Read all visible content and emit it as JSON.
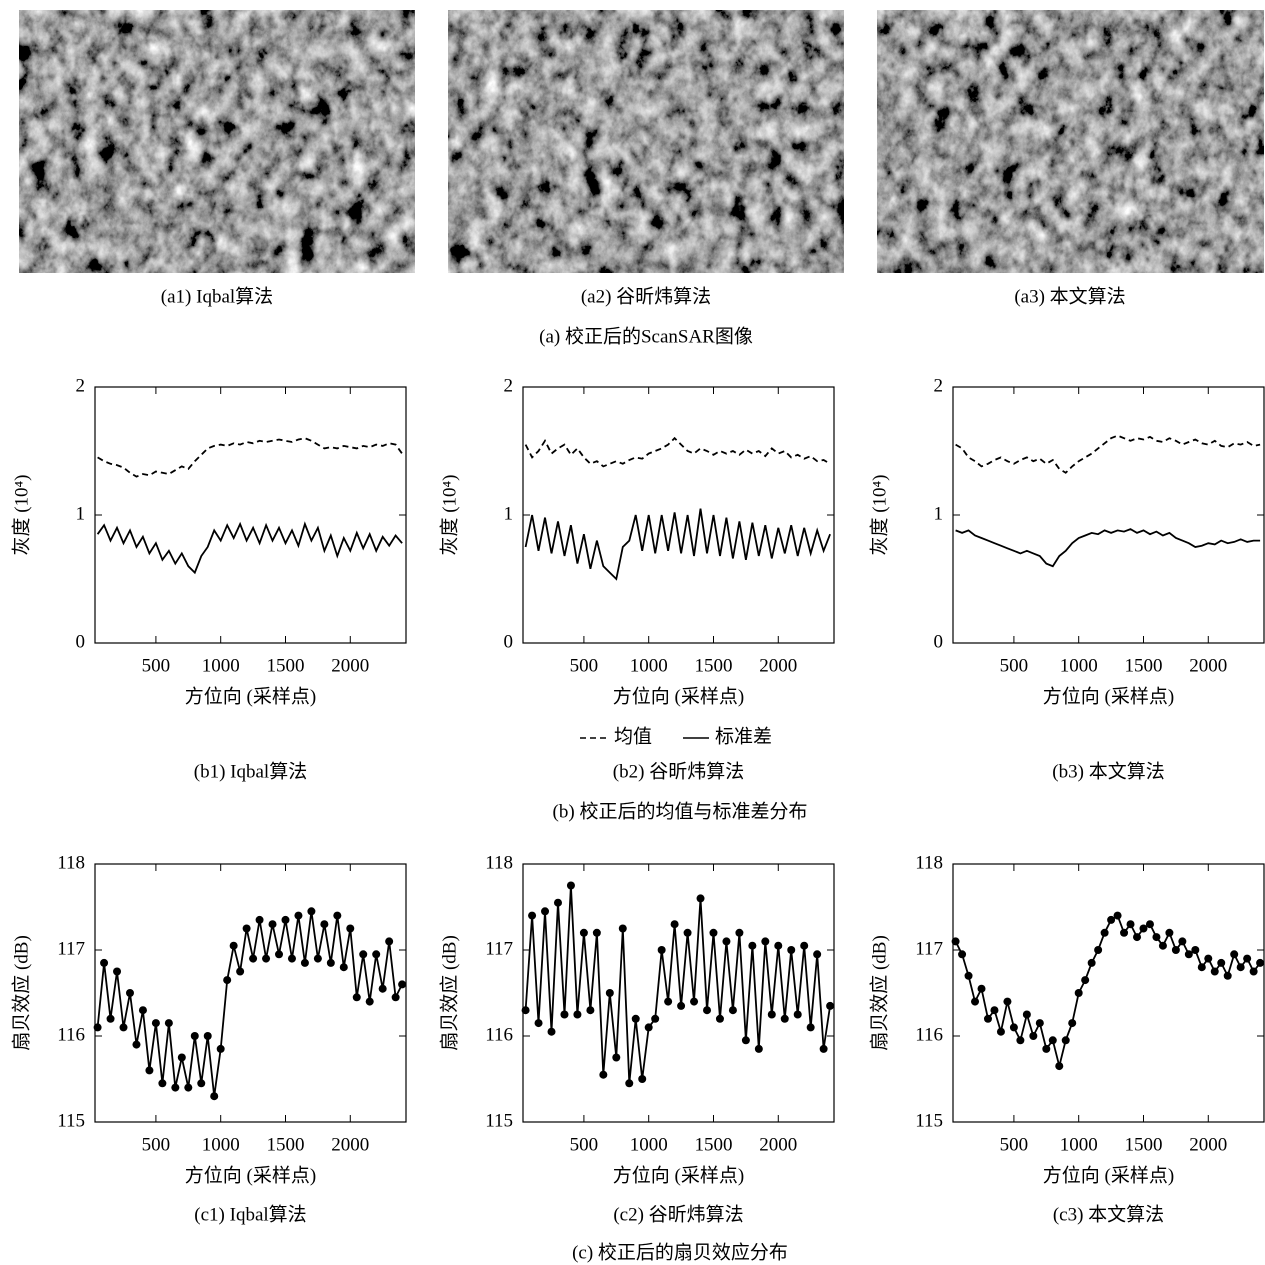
{
  "images": [
    {
      "caption": "(a1) Iqbal算法"
    },
    {
      "caption": "(a2) 谷昕炜算法"
    },
    {
      "caption": "(a3) 本文算法"
    }
  ],
  "group_captions": [
    "(a) 校正后的ScanSAR图像",
    "(b) 校正后的均值与标准差分布",
    "(c) 校正后的扇贝效应分布"
  ],
  "chart_data": [
    {
      "type": "line",
      "caption": "(b1) Iqbal算法",
      "xlabel": "方位向 (采样点)",
      "ylabel": "灰度 (10⁴)",
      "xlim": [
        30,
        2430
      ],
      "ylim": [
        0,
        2
      ],
      "xticks": [
        500,
        1000,
        1500,
        2000
      ],
      "yticks": [
        0,
        1,
        2
      ],
      "x": [
        50,
        100,
        150,
        200,
        250,
        300,
        350,
        400,
        450,
        500,
        550,
        600,
        650,
        700,
        750,
        800,
        850,
        900,
        950,
        1000,
        1050,
        1100,
        1150,
        1200,
        1250,
        1300,
        1350,
        1400,
        1450,
        1500,
        1550,
        1600,
        1650,
        1700,
        1750,
        1800,
        1850,
        1900,
        1950,
        2000,
        2050,
        2100,
        2150,
        2200,
        2250,
        2300,
        2350,
        2400
      ],
      "series": [
        {
          "name": "均值",
          "color": "#000000",
          "linestyle": "dashed",
          "values": [
            1.45,
            1.42,
            1.4,
            1.39,
            1.37,
            1.33,
            1.3,
            1.32,
            1.31,
            1.34,
            1.33,
            1.32,
            1.35,
            1.38,
            1.36,
            1.42,
            1.47,
            1.52,
            1.54,
            1.55,
            1.54,
            1.56,
            1.55,
            1.57,
            1.56,
            1.58,
            1.57,
            1.58,
            1.59,
            1.58,
            1.57,
            1.59,
            1.6,
            1.58,
            1.55,
            1.52,
            1.53,
            1.52,
            1.54,
            1.53,
            1.52,
            1.54,
            1.53,
            1.55,
            1.54,
            1.56,
            1.55,
            1.48
          ]
        },
        {
          "name": "标准差",
          "color": "#000000",
          "linestyle": "solid",
          "values": [
            0.85,
            0.92,
            0.8,
            0.9,
            0.78,
            0.88,
            0.75,
            0.83,
            0.7,
            0.78,
            0.65,
            0.72,
            0.62,
            0.7,
            0.6,
            0.55,
            0.68,
            0.75,
            0.88,
            0.8,
            0.92,
            0.82,
            0.93,
            0.8,
            0.9,
            0.78,
            0.92,
            0.8,
            0.9,
            0.78,
            0.88,
            0.76,
            0.93,
            0.8,
            0.9,
            0.72,
            0.84,
            0.68,
            0.82,
            0.72,
            0.86,
            0.74,
            0.85,
            0.72,
            0.83,
            0.76,
            0.84,
            0.78
          ]
        }
      ]
    },
    {
      "type": "line",
      "caption": "(b2) 谷昕炜算法",
      "xlabel": "方位向 (采样点)",
      "ylabel": "灰度 (10⁴)",
      "xlim": [
        30,
        2430
      ],
      "ylim": [
        0,
        2
      ],
      "xticks": [
        500,
        1000,
        1500,
        2000
      ],
      "yticks": [
        0,
        1,
        2
      ],
      "x": [
        50,
        100,
        150,
        200,
        250,
        300,
        350,
        400,
        450,
        500,
        550,
        600,
        650,
        700,
        750,
        800,
        850,
        900,
        950,
        1000,
        1050,
        1100,
        1150,
        1200,
        1250,
        1300,
        1350,
        1400,
        1450,
        1500,
        1550,
        1600,
        1650,
        1700,
        1750,
        1800,
        1850,
        1900,
        1950,
        2000,
        2050,
        2100,
        2150,
        2200,
        2250,
        2300,
        2350,
        2400
      ],
      "series": [
        {
          "name": "均值",
          "color": "#000000",
          "linestyle": "dashed",
          "values": [
            1.55,
            1.45,
            1.5,
            1.58,
            1.48,
            1.52,
            1.55,
            1.47,
            1.52,
            1.45,
            1.4,
            1.42,
            1.38,
            1.4,
            1.42,
            1.4,
            1.43,
            1.45,
            1.44,
            1.48,
            1.5,
            1.52,
            1.55,
            1.6,
            1.55,
            1.5,
            1.48,
            1.52,
            1.5,
            1.47,
            1.5,
            1.48,
            1.5,
            1.47,
            1.51,
            1.48,
            1.5,
            1.46,
            1.52,
            1.48,
            1.5,
            1.45,
            1.47,
            1.44,
            1.46,
            1.42,
            1.43,
            1.4
          ]
        },
        {
          "name": "标准差",
          "color": "#000000",
          "linestyle": "solid",
          "values": [
            0.75,
            1.0,
            0.72,
            0.98,
            0.7,
            0.95,
            0.68,
            0.92,
            0.62,
            0.85,
            0.58,
            0.8,
            0.6,
            0.55,
            0.5,
            0.75,
            0.8,
            1.0,
            0.72,
            1.0,
            0.7,
            1.0,
            0.72,
            1.02,
            0.7,
            1.0,
            0.68,
            1.05,
            0.7,
            1.0,
            0.68,
            0.98,
            0.66,
            0.95,
            0.65,
            0.94,
            0.68,
            0.92,
            0.66,
            0.9,
            0.7,
            0.92,
            0.68,
            0.9,
            0.7,
            0.88,
            0.72,
            0.85
          ]
        }
      ]
    },
    {
      "type": "line",
      "caption": "(b3) 本文算法",
      "xlabel": "方位向 (采样点)",
      "ylabel": "灰度 (10⁴)",
      "xlim": [
        30,
        2430
      ],
      "ylim": [
        0,
        2
      ],
      "xticks": [
        500,
        1000,
        1500,
        2000
      ],
      "yticks": [
        0,
        1,
        2
      ],
      "x": [
        50,
        100,
        150,
        200,
        250,
        300,
        350,
        400,
        450,
        500,
        550,
        600,
        650,
        700,
        750,
        800,
        850,
        900,
        950,
        1000,
        1050,
        1100,
        1150,
        1200,
        1250,
        1300,
        1350,
        1400,
        1450,
        1500,
        1550,
        1600,
        1650,
        1700,
        1750,
        1800,
        1850,
        1900,
        1950,
        2000,
        2050,
        2100,
        2150,
        2200,
        2250,
        2300,
        2350,
        2400
      ],
      "series": [
        {
          "name": "均值",
          "color": "#000000",
          "linestyle": "dashed",
          "values": [
            1.55,
            1.52,
            1.45,
            1.42,
            1.38,
            1.4,
            1.43,
            1.45,
            1.42,
            1.4,
            1.43,
            1.45,
            1.42,
            1.44,
            1.4,
            1.43,
            1.36,
            1.33,
            1.38,
            1.42,
            1.45,
            1.48,
            1.52,
            1.56,
            1.6,
            1.62,
            1.6,
            1.58,
            1.6,
            1.59,
            1.61,
            1.58,
            1.57,
            1.6,
            1.58,
            1.55,
            1.57,
            1.59,
            1.56,
            1.55,
            1.58,
            1.54,
            1.53,
            1.56,
            1.55,
            1.57,
            1.54,
            1.55
          ]
        },
        {
          "name": "标准差",
          "color": "#000000",
          "linestyle": "solid",
          "values": [
            0.88,
            0.86,
            0.88,
            0.84,
            0.82,
            0.8,
            0.78,
            0.76,
            0.74,
            0.72,
            0.7,
            0.72,
            0.7,
            0.68,
            0.62,
            0.6,
            0.68,
            0.72,
            0.78,
            0.82,
            0.84,
            0.86,
            0.85,
            0.88,
            0.86,
            0.88,
            0.87,
            0.89,
            0.86,
            0.88,
            0.85,
            0.87,
            0.84,
            0.86,
            0.82,
            0.8,
            0.78,
            0.75,
            0.76,
            0.78,
            0.77,
            0.8,
            0.78,
            0.79,
            0.81,
            0.79,
            0.8,
            0.8
          ]
        }
      ]
    },
    {
      "type": "line",
      "caption": "(c1) Iqbal算法",
      "xlabel": "方位向 (采样点)",
      "ylabel": "扇贝效应 (dB)",
      "xlim": [
        30,
        2430
      ],
      "ylim": [
        115,
        118
      ],
      "xticks": [
        500,
        1000,
        1500,
        2000
      ],
      "yticks": [
        115,
        116,
        117,
        118
      ],
      "x": [
        50,
        100,
        150,
        200,
        250,
        300,
        350,
        400,
        450,
        500,
        550,
        600,
        650,
        700,
        750,
        800,
        850,
        900,
        950,
        1000,
        1050,
        1100,
        1150,
        1200,
        1250,
        1300,
        1350,
        1400,
        1450,
        1500,
        1550,
        1600,
        1650,
        1700,
        1750,
        1800,
        1850,
        1900,
        1950,
        2000,
        2050,
        2100,
        2150,
        2200,
        2250,
        2300,
        2350,
        2400
      ],
      "series": [
        {
          "color": "#000000",
          "linestyle": "solid",
          "marker": "circle",
          "values": [
            116.1,
            116.85,
            116.2,
            116.75,
            116.1,
            116.5,
            115.9,
            116.3,
            115.6,
            116.15,
            115.45,
            116.15,
            115.4,
            115.75,
            115.4,
            116.0,
            115.45,
            116.0,
            115.3,
            115.85,
            116.65,
            117.05,
            116.75,
            117.25,
            116.9,
            117.35,
            116.9,
            117.3,
            116.95,
            117.35,
            116.9,
            117.4,
            116.85,
            117.45,
            116.9,
            117.3,
            116.85,
            117.4,
            116.8,
            117.25,
            116.45,
            116.95,
            116.4,
            116.95,
            116.55,
            117.1,
            116.45,
            116.6
          ]
        }
      ]
    },
    {
      "type": "line",
      "caption": "(c2) 谷昕炜算法",
      "xlabel": "方位向 (采样点)",
      "ylabel": "扇贝效应 (dB)",
      "xlim": [
        30,
        2430
      ],
      "ylim": [
        115,
        118
      ],
      "xticks": [
        500,
        1000,
        1500,
        2000
      ],
      "yticks": [
        115,
        116,
        117,
        118
      ],
      "x": [
        50,
        100,
        150,
        200,
        250,
        300,
        350,
        400,
        450,
        500,
        550,
        600,
        650,
        700,
        750,
        800,
        850,
        900,
        950,
        1000,
        1050,
        1100,
        1150,
        1200,
        1250,
        1300,
        1350,
        1400,
        1450,
        1500,
        1550,
        1600,
        1650,
        1700,
        1750,
        1800,
        1850,
        1900,
        1950,
        2000,
        2050,
        2100,
        2150,
        2200,
        2250,
        2300,
        2350,
        2400
      ],
      "series": [
        {
          "color": "#000000",
          "linestyle": "solid",
          "marker": "circle",
          "values": [
            116.3,
            117.4,
            116.15,
            117.45,
            116.05,
            117.55,
            116.25,
            117.75,
            116.25,
            117.2,
            116.3,
            117.2,
            115.55,
            116.5,
            115.75,
            117.25,
            115.45,
            116.2,
            115.5,
            116.1,
            116.2,
            117.0,
            116.4,
            117.3,
            116.35,
            117.2,
            116.4,
            117.6,
            116.3,
            117.2,
            116.2,
            117.1,
            116.3,
            117.2,
            115.95,
            117.05,
            115.85,
            117.1,
            116.25,
            117.05,
            116.2,
            117.0,
            116.25,
            117.05,
            116.1,
            116.95,
            115.85,
            116.35
          ]
        }
      ]
    },
    {
      "type": "line",
      "caption": "(c3) 本文算法",
      "xlabel": "方位向 (采样点)",
      "ylabel": "扇贝效应 (dB)",
      "xlim": [
        30,
        2430
      ],
      "ylim": [
        115,
        118
      ],
      "xticks": [
        500,
        1000,
        1500,
        2000
      ],
      "yticks": [
        115,
        116,
        117,
        118
      ],
      "x": [
        50,
        100,
        150,
        200,
        250,
        300,
        350,
        400,
        450,
        500,
        550,
        600,
        650,
        700,
        750,
        800,
        850,
        900,
        950,
        1000,
        1050,
        1100,
        1150,
        1200,
        1250,
        1300,
        1350,
        1400,
        1450,
        1500,
        1550,
        1600,
        1650,
        1700,
        1750,
        1800,
        1850,
        1900,
        1950,
        2000,
        2050,
        2100,
        2150,
        2200,
        2250,
        2300,
        2350,
        2400
      ],
      "series": [
        {
          "color": "#000000",
          "linestyle": "solid",
          "marker": "circle",
          "values": [
            117.1,
            116.95,
            116.7,
            116.4,
            116.55,
            116.2,
            116.3,
            116.05,
            116.4,
            116.1,
            115.95,
            116.25,
            116.0,
            116.15,
            115.85,
            115.95,
            115.65,
            115.95,
            116.15,
            116.5,
            116.65,
            116.85,
            117.0,
            117.2,
            117.35,
            117.4,
            117.2,
            117.3,
            117.15,
            117.25,
            117.3,
            117.15,
            117.05,
            117.2,
            117.0,
            117.1,
            116.95,
            117.0,
            116.8,
            116.9,
            116.75,
            116.85,
            116.7,
            116.95,
            116.8,
            116.9,
            116.75,
            116.85
          ]
        }
      ]
    }
  ]
}
